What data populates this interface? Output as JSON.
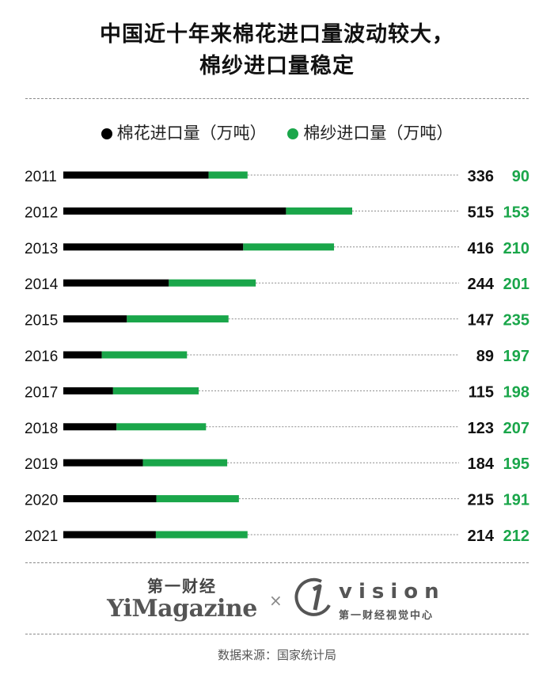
{
  "title_lines": [
    "中国近十年来棉花进口量波动较大，",
    "棉纱进口量稳定"
  ],
  "legend": [
    {
      "label": "棉花进口量（万吨）",
      "color": "#000000"
    },
    {
      "label": "棉纱进口量（万吨）",
      "color": "#1aa64a"
    }
  ],
  "chart_data": {
    "type": "bar",
    "orientation": "horizontal",
    "stacked": true,
    "categories": [
      "2011",
      "2012",
      "2013",
      "2014",
      "2015",
      "2016",
      "2017",
      "2018",
      "2019",
      "2020",
      "2021"
    ],
    "series": [
      {
        "name": "棉花进口量（万吨）",
        "color": "#000000",
        "values": [
          336,
          515,
          416,
          244,
          147,
          89,
          115,
          123,
          184,
          215,
          214
        ]
      },
      {
        "name": "棉纱进口量（万吨）",
        "color": "#1aa64a",
        "values": [
          90,
          153,
          210,
          201,
          235,
          197,
          198,
          207,
          195,
          191,
          212
        ]
      }
    ],
    "value_labels": true,
    "grid": false
  },
  "logos": {
    "yimagazine_cn": "第一财经",
    "yimagazine_en": "YiMagazine",
    "separator": "×",
    "vision_word": "vision",
    "vision_cn": "第一财经视觉中心"
  },
  "source": "数据来源：国家统计局"
}
